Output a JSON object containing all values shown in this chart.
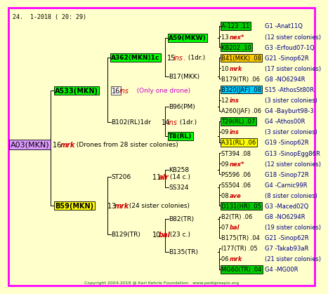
{
  "bg_color": "#ffffcc",
  "border_color": "#ff00ff",
  "title_text": "24.  1-2018 ( 20: 29)",
  "copyright": "Copyright 2004-2018 @ Karl Kehrle Foundation   www.pedigreapis.org",
  "gen4_entries": [
    {
      "label1": "A-123 .11",
      "box1": "#00cc00",
      "label2": "G1 -Anat11Q",
      "italic2": false
    },
    {
      "label1": "13 nex*",
      "box1": null,
      "label2": "(12 sister colonies)",
      "italic2": false,
      "special": "nex"
    },
    {
      "label1": "KB202 .10",
      "box1": "#00cc00",
      "label2": "G3 -Erfoud07-1Q",
      "italic2": false
    },
    {
      "label1": "B41(MKK) .08",
      "box1": "#ffcc00",
      "label2": "G21 -Sinop62R",
      "italic2": false
    },
    {
      "label1": "10 mrk",
      "box1": null,
      "label2": "(17 sister colonies)",
      "italic2": false,
      "special": "mrk"
    },
    {
      "label1": "B179(TR) .06",
      "box1": null,
      "label2": "G8 -NO6294R",
      "italic2": false
    },
    {
      "label1": "B320(JAF) .08",
      "box1": "#00ccff",
      "label2": "S15 -AthosSt80R",
      "italic2": false
    },
    {
      "label1": "12 ins",
      "box1": null,
      "label2": "(3 sister colonies)",
      "italic2": false,
      "special": "ins"
    },
    {
      "label1": "A260(JAF) .06",
      "box1": null,
      "label2": "G4 -Bayburt98-3",
      "italic2": false
    },
    {
      "label1": "T29(RL) .07",
      "box1": "#00cc00",
      "label2": "G4 -Athos00R",
      "italic2": false
    },
    {
      "label1": "09 ins",
      "box1": null,
      "label2": "(3 sister colonies)",
      "italic2": false,
      "special": "ins"
    },
    {
      "label1": "A31(RL) .06",
      "box1": "#ffff00",
      "label2": "G19 -Sinop62R",
      "italic2": false
    },
    {
      "label1": "ST394 .08",
      "box1": null,
      "label2": "G13 -SinopEgg86R",
      "italic2": false
    },
    {
      "label1": "09 nex*",
      "box1": null,
      "label2": "(12 sister colonies)",
      "italic2": false,
      "special": "nex"
    },
    {
      "label1": "PS596 .06",
      "box1": null,
      "label2": "G18 -Sinop72R",
      "italic2": false
    },
    {
      "label1": "SS504 .06",
      "box1": null,
      "label2": "G4 -Carnic99R",
      "italic2": false
    },
    {
      "label1": "08 ave",
      "box1": null,
      "label2": "(8 sister colonies)",
      "italic2": false,
      "special": "ave"
    },
    {
      "label1": "D131(HR) .05",
      "box1": "#00cc00",
      "label2": "G3 -Maced02Q",
      "italic2": false
    },
    {
      "label1": "B2(TR) .06",
      "box1": null,
      "label2": "G8 -NO6294R",
      "italic2": false
    },
    {
      "label1": "07 bal",
      "box1": null,
      "label2": "(19 sister colonies)",
      "italic2": false,
      "special": "bal"
    },
    {
      "label1": "B175(TR) .04",
      "box1": null,
      "label2": "G21 -Sinop62R",
      "italic2": false
    },
    {
      "label1": "I177(TR) .05",
      "box1": null,
      "label2": "G7 -Takab93aR",
      "italic2": false
    },
    {
      "label1": "06 mrk",
      "box1": null,
      "label2": "(21 sister colonies)",
      "italic2": false,
      "special": "mrk"
    },
    {
      "label1": "MG60(TR) .04",
      "box1": "#00cc00",
      "label2": "G4 -MG00R",
      "italic2": false
    }
  ]
}
